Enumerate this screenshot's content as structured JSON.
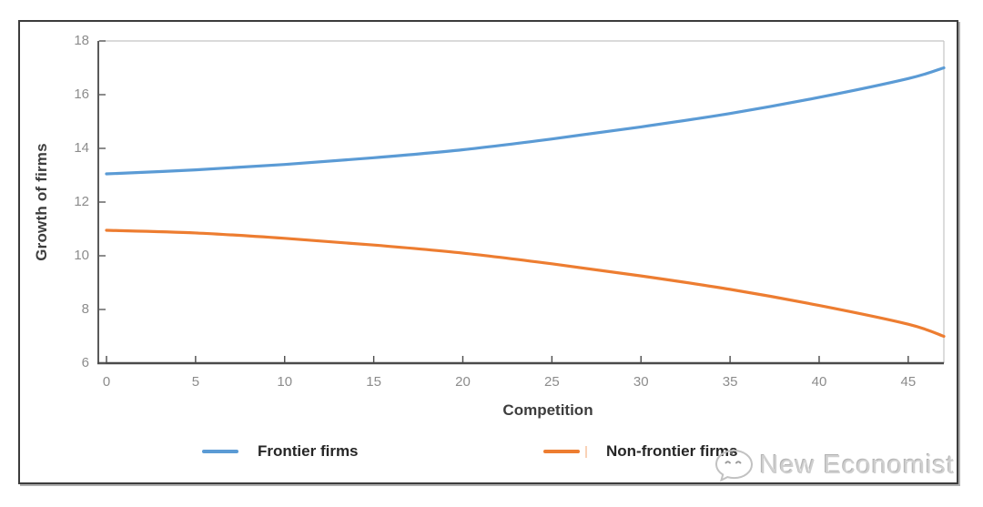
{
  "chart_data": {
    "type": "line",
    "title": "",
    "xlabel": "Competition",
    "ylabel": "Growth of firms",
    "xlim": [
      0,
      47
    ],
    "ylim": [
      6,
      18
    ],
    "x_ticks": [
      0,
      5,
      10,
      15,
      20,
      25,
      30,
      35,
      40,
      45
    ],
    "y_ticks": [
      6,
      8,
      10,
      12,
      14,
      16,
      18
    ],
    "grid": false,
    "legend_position": "bottom",
    "x": [
      0,
      5,
      10,
      15,
      20,
      25,
      30,
      35,
      40,
      45,
      47
    ],
    "series": [
      {
        "name": "Frontier firms",
        "color": "#5B9BD5",
        "values": [
          13.05,
          13.2,
          13.4,
          13.65,
          13.95,
          14.35,
          14.8,
          15.3,
          15.9,
          16.6,
          17.0
        ]
      },
      {
        "name": "Non-frontier firms",
        "color": "#ED7D31",
        "values": [
          10.95,
          10.85,
          10.65,
          10.4,
          10.1,
          9.7,
          9.25,
          8.75,
          8.15,
          7.45,
          7.0
        ]
      }
    ]
  },
  "watermark": {
    "text": "New Economist",
    "icon": "wechat-icon"
  }
}
